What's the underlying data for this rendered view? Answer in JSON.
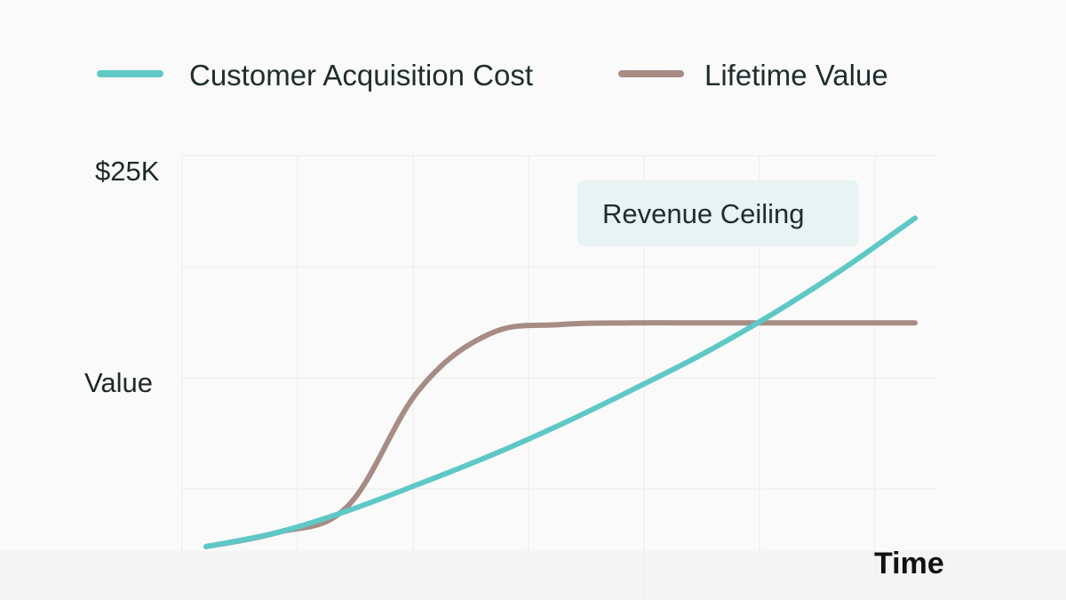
{
  "chart_data": {
    "type": "line",
    "title": "",
    "xlabel": "Time",
    "ylabel": "Value",
    "y_top_label": "$25K",
    "ylim": [
      0,
      25000
    ],
    "xlim": [
      0,
      10
    ],
    "grid": true,
    "legend_position": "top",
    "series": [
      {
        "name": "Customer Acquisition Cost",
        "color": "#5ec8c6",
        "x": [
          0,
          1,
          2,
          3,
          4,
          5,
          6,
          7,
          8,
          9,
          10
        ],
        "y": [
          0,
          900,
          2300,
          4000,
          5800,
          7800,
          10000,
          12300,
          14900,
          17800,
          21000
        ]
      },
      {
        "name": "Lifetime Value",
        "color": "#a68c84",
        "x": [
          0,
          1,
          2,
          3,
          4,
          5,
          6,
          7,
          8,
          9,
          10
        ],
        "y": [
          0,
          900,
          2600,
          10000,
          13600,
          14200,
          14300,
          14300,
          14300,
          14300,
          14300
        ]
      }
    ],
    "annotations": [
      {
        "text": "Revenue Ceiling",
        "x": 7.15,
        "y": 21200
      }
    ]
  }
}
